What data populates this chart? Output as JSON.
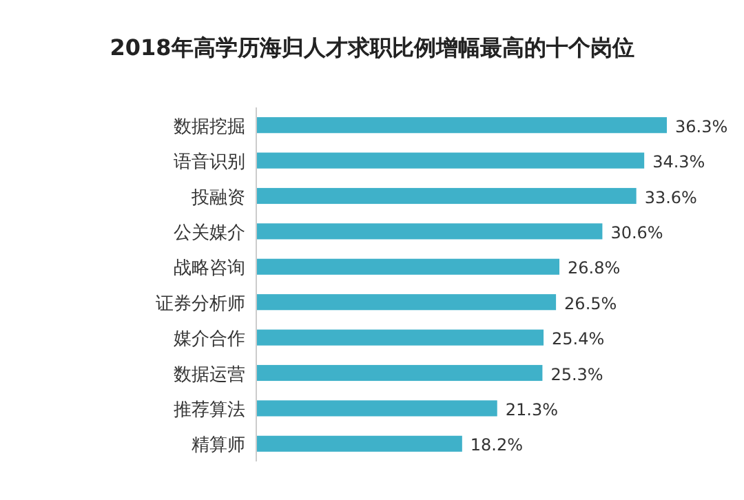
{
  "chart_data": {
    "type": "bar",
    "orientation": "horizontal",
    "title": "2018年高学历海归人才求职比例增幅最高的十个岗位",
    "categories": [
      "数据挖掘",
      "语音识别",
      "投融资",
      "公关媒介",
      "战略咨询",
      "证券分析师",
      "媒介合作",
      "数据运营",
      "推荐算法",
      "精算师"
    ],
    "values": [
      36.3,
      34.3,
      33.6,
      30.6,
      26.8,
      26.5,
      25.4,
      25.3,
      21.3,
      18.2
    ],
    "value_labels": [
      "36.3%",
      "34.3%",
      "33.6%",
      "30.6%",
      "26.8%",
      "26.5%",
      "25.4%",
      "25.3%",
      "21.3%",
      "18.2%"
    ],
    "color": "#3fb1c9"
  }
}
